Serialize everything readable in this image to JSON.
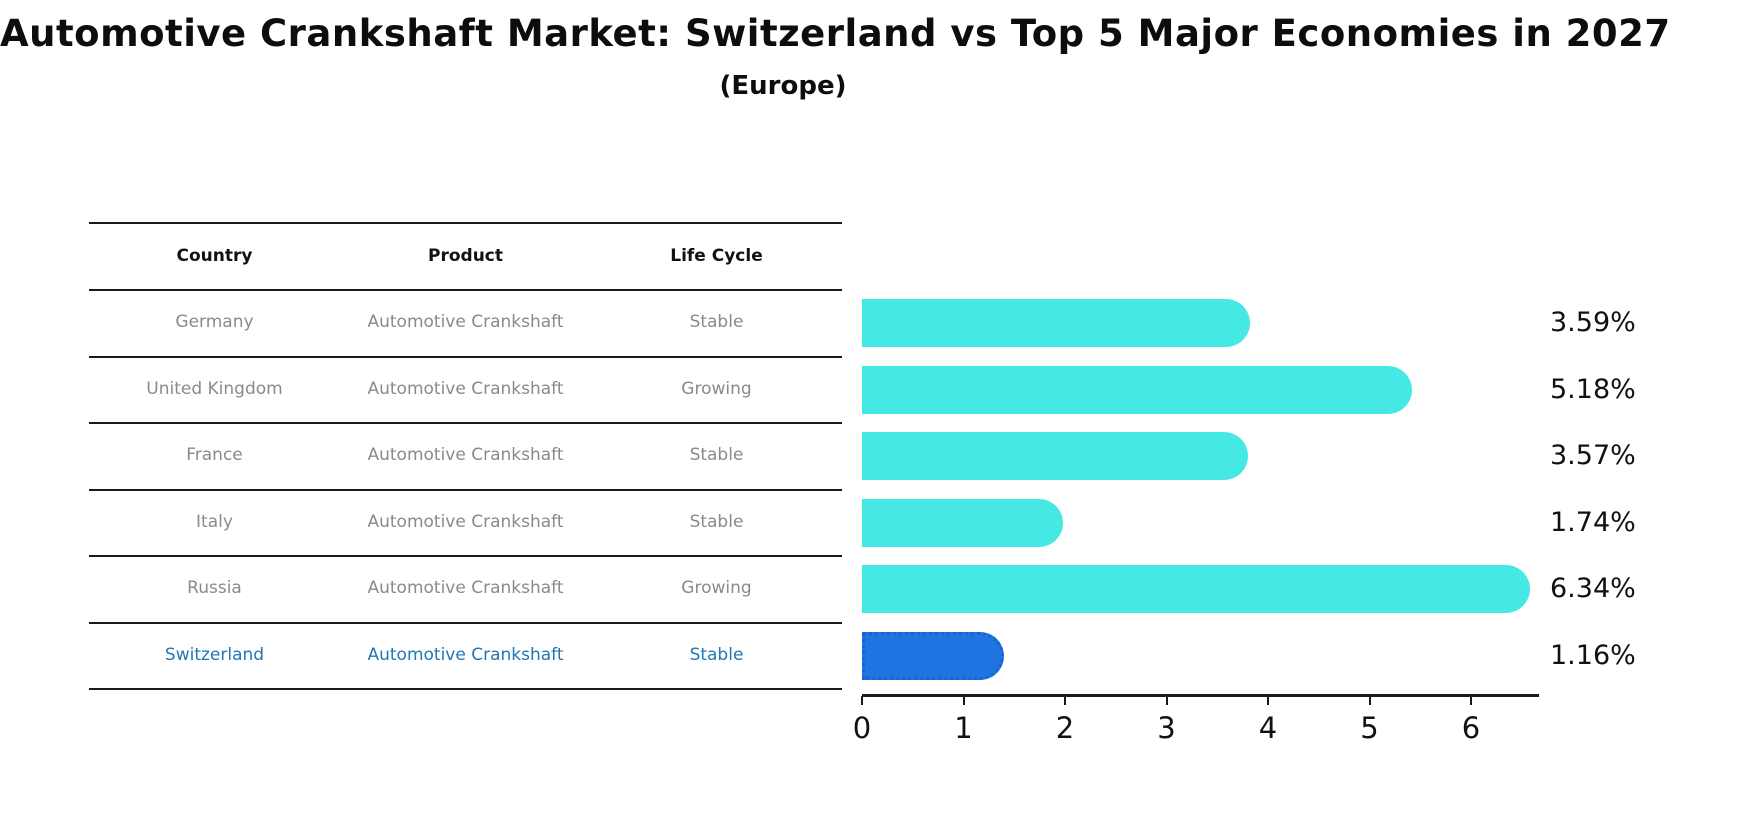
{
  "title": "Automotive Crankshaft Market: Switzerland vs Top 5 Major Economies in 2027",
  "subtitle": "(Europe)",
  "table": {
    "headers": [
      "Country",
      "Product",
      "Life Cycle"
    ],
    "rows": [
      {
        "country": "Germany",
        "product": "Automotive Crankshaft",
        "life_cycle": "Stable",
        "highlighted": false
      },
      {
        "country": "United Kingdom",
        "product": "Automotive Crankshaft",
        "life_cycle": "Growing",
        "highlighted": false
      },
      {
        "country": "France",
        "product": "Automotive Crankshaft",
        "life_cycle": "Stable",
        "highlighted": false
      },
      {
        "country": "Italy",
        "product": "Automotive Crankshaft",
        "life_cycle": "Stable",
        "highlighted": false
      },
      {
        "country": "Russia",
        "product": "Automotive Crankshaft",
        "life_cycle": "Growing",
        "highlighted": false
      },
      {
        "country": "Switzerland",
        "product": "Automotive Crankshaft",
        "life_cycle": "Stable",
        "highlighted": true
      }
    ]
  },
  "chart_data": {
    "type": "bar",
    "orientation": "horizontal",
    "title": "Automotive Crankshaft Market: Switzerland vs Top 5 Major Economies in 2027",
    "subtitle": "(Europe)",
    "categories": [
      "Germany",
      "United Kingdom",
      "France",
      "Italy",
      "Russia",
      "Switzerland"
    ],
    "values": [
      3.59,
      5.18,
      3.57,
      1.74,
      6.34,
      1.16
    ],
    "data_labels": [
      "3.59%",
      "5.18%",
      "3.57%",
      "1.74%",
      "6.34%",
      "1.16%"
    ],
    "xlabel": "",
    "ylabel": "",
    "xlim": [
      0,
      6.67
    ],
    "xticks": [
      0,
      1,
      2,
      3,
      4,
      5,
      6
    ],
    "grid": false,
    "legend": false,
    "highlighted_category": "Switzerland"
  },
  "colors": {
    "bar": "#45E8E3",
    "highlight_bar": "#1E75E2",
    "highlight_bar_border": "#1464D2",
    "highlight_text": "#1f77b4",
    "row_text": "#8a8a8a",
    "header_text": "#111111",
    "axis": "#1a1a1a"
  }
}
